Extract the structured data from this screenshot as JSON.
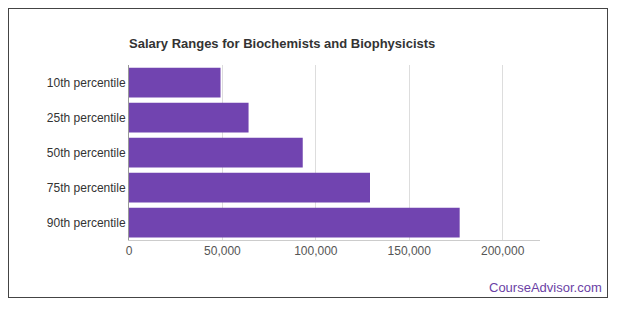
{
  "chart_data": {
    "type": "bar",
    "orientation": "horizontal",
    "title": "Salary Ranges for Biochemists and Biophysicists",
    "categories": [
      "10th percentile",
      "25th percentile",
      "50th percentile",
      "75th percentile",
      "90th percentile"
    ],
    "values": [
      49000,
      64000,
      93000,
      129000,
      177000
    ],
    "color": "#7144b0",
    "xlim": [
      0,
      220000
    ],
    "xticks": [
      0,
      {
        "value": 50000,
        "label": "50,000"
      },
      {
        "value": 100000,
        "label": "100,000"
      },
      {
        "value": 150000,
        "label": "150,000"
      },
      {
        "value": 200000,
        "label": "200,000"
      }
    ],
    "grid": true,
    "annotations": [
      "CourseAdvisor.com"
    ]
  }
}
